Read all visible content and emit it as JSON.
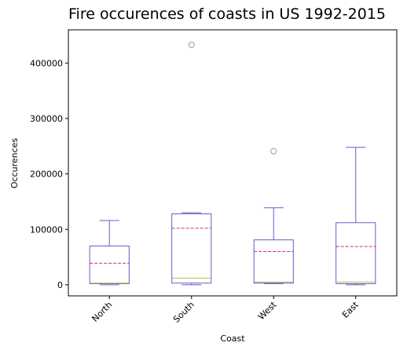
{
  "chart_data": {
    "type": "box",
    "title": "Fire occurences of coasts in US 1992-2015",
    "xlabel": "Coast",
    "ylabel": "Occurences",
    "categories": [
      "North",
      "South",
      "West",
      "East"
    ],
    "ylim": [
      -20000,
      460000
    ],
    "yticks": [
      0,
      100000,
      200000,
      300000,
      400000
    ],
    "ytick_labels": [
      "0",
      "100000",
      "200000",
      "300000",
      "400000"
    ],
    "grid": false,
    "boxes": [
      {
        "category": "North",
        "whisker_low": 0,
        "q1": 2000,
        "median": 3000,
        "q3": 70000,
        "whisker_high": 116000,
        "mean": 39000,
        "outliers": []
      },
      {
        "category": "South",
        "whisker_low": 0,
        "q1": 3000,
        "median": 12000,
        "q3": 128000,
        "whisker_high": 130000,
        "mean": 102000,
        "outliers": [
          433000
        ]
      },
      {
        "category": "West",
        "whisker_low": 2000,
        "q1": 3000,
        "median": 5000,
        "q3": 81000,
        "whisker_high": 139000,
        "mean": 60000,
        "outliers": [
          241000
        ]
      },
      {
        "category": "East",
        "whisker_low": 0,
        "q1": 2000,
        "median": 5000,
        "q3": 112000,
        "whisker_high": 248000,
        "mean": 69000,
        "outliers": []
      }
    ],
    "colors": {
      "box": "#6a5acd",
      "median": "#9acd32",
      "mean": "#e0218a",
      "outlier": "#999999"
    }
  }
}
